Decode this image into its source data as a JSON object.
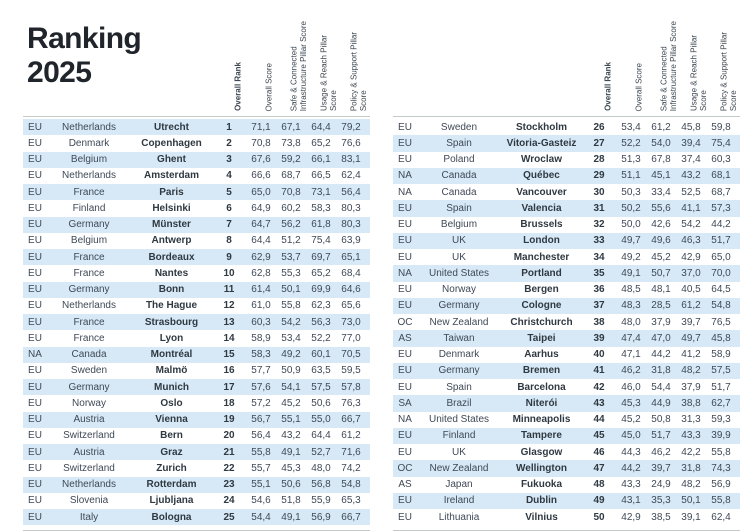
{
  "title": "Ranking\n2025",
  "column_headers": [
    "Overall Rank",
    "Overall Score",
    "Safe & Connected\nInfrastructure Pillar Score",
    "Usage & Reach Pillar\nScore",
    "Policy & Support Pillar\nScore"
  ],
  "colors": {
    "row_highlight": "#d7e9f6",
    "body_text": "#3f4956",
    "title_text": "#20242b",
    "rule_line": "#c4c9cc"
  },
  "tables": [
    {
      "rows": [
        {
          "region": "EU",
          "country": "Netherlands",
          "city": "Utrecht",
          "rank": "1",
          "overall": "71,1",
          "infrastructure": "67,1",
          "usage": "64,4",
          "policy": "79,2"
        },
        {
          "region": "EU",
          "country": "Denmark",
          "city": "Copenhagen",
          "rank": "2",
          "overall": "70,8",
          "infrastructure": "73,8",
          "usage": "65,2",
          "policy": "76,6"
        },
        {
          "region": "EU",
          "country": "Belgium",
          "city": "Ghent",
          "rank": "3",
          "overall": "67,6",
          "infrastructure": "59,2",
          "usage": "66,1",
          "policy": "83,1"
        },
        {
          "region": "EU",
          "country": "Netherlands",
          "city": "Amsterdam",
          "rank": "4",
          "overall": "66,6",
          "infrastructure": "68,7",
          "usage": "66,5",
          "policy": "62,4"
        },
        {
          "region": "EU",
          "country": "France",
          "city": "Paris",
          "rank": "5",
          "overall": "65,0",
          "infrastructure": "70,8",
          "usage": "73,1",
          "policy": "56,4"
        },
        {
          "region": "EU",
          "country": "Finland",
          "city": "Helsinki",
          "rank": "6",
          "overall": "64,9",
          "infrastructure": "60,2",
          "usage": "58,3",
          "policy": "80,3"
        },
        {
          "region": "EU",
          "country": "Germany",
          "city": "Münster",
          "rank": "7",
          "overall": "64,7",
          "infrastructure": "56,2",
          "usage": "61,8",
          "policy": "80,3"
        },
        {
          "region": "EU",
          "country": "Belgium",
          "city": "Antwerp",
          "rank": "8",
          "overall": "64,4",
          "infrastructure": "51,2",
          "usage": "75,4",
          "policy": "63,9"
        },
        {
          "region": "EU",
          "country": "France",
          "city": "Bordeaux",
          "rank": "9",
          "overall": "62,9",
          "infrastructure": "53,7",
          "usage": "69,7",
          "policy": "65,1"
        },
        {
          "region": "EU",
          "country": "France",
          "city": "Nantes",
          "rank": "10",
          "overall": "62,8",
          "infrastructure": "55,3",
          "usage": "65,2",
          "policy": "68,4"
        },
        {
          "region": "EU",
          "country": "Germany",
          "city": "Bonn",
          "rank": "11",
          "overall": "61,4",
          "infrastructure": "50,1",
          "usage": "69,9",
          "policy": "64,6"
        },
        {
          "region": "EU",
          "country": "Netherlands",
          "city": "The Hague",
          "rank": "12",
          "overall": "61,0",
          "infrastructure": "55,8",
          "usage": "62,3",
          "policy": "65,6"
        },
        {
          "region": "EU",
          "country": "France",
          "city": "Strasbourg",
          "rank": "13",
          "overall": "60,3",
          "infrastructure": "54,2",
          "usage": "56,3",
          "policy": "73,0"
        },
        {
          "region": "EU",
          "country": "France",
          "city": "Lyon",
          "rank": "14",
          "overall": "58,9",
          "infrastructure": "53,4",
          "usage": "52,2",
          "policy": "77,0"
        },
        {
          "region": "NA",
          "country": "Canada",
          "city": "Montréal",
          "rank": "15",
          "overall": "58,3",
          "infrastructure": "49,2",
          "usage": "60,1",
          "policy": "70,5"
        },
        {
          "region": "EU",
          "country": "Sweden",
          "city": "Malmö",
          "rank": "16",
          "overall": "57,7",
          "infrastructure": "50,9",
          "usage": "63,5",
          "policy": "59,5"
        },
        {
          "region": "EU",
          "country": "Germany",
          "city": "Munich",
          "rank": "17",
          "overall": "57,6",
          "infrastructure": "54,1",
          "usage": "57,5",
          "policy": "57,8"
        },
        {
          "region": "EU",
          "country": "Norway",
          "city": "Oslo",
          "rank": "18",
          "overall": "57,2",
          "infrastructure": "45,2",
          "usage": "50,6",
          "policy": "76,3"
        },
        {
          "region": "EU",
          "country": "Austria",
          "city": "Vienna",
          "rank": "19",
          "overall": "56,7",
          "infrastructure": "55,1",
          "usage": "55,0",
          "policy": "66,7"
        },
        {
          "region": "EU",
          "country": "Switzerland",
          "city": "Bern",
          "rank": "20",
          "overall": "56,4",
          "infrastructure": "43,2",
          "usage": "64,4",
          "policy": "61,2"
        },
        {
          "region": "EU",
          "country": "Austria",
          "city": "Graz",
          "rank": "21",
          "overall": "55,8",
          "infrastructure": "49,1",
          "usage": "52,7",
          "policy": "71,6"
        },
        {
          "region": "EU",
          "country": "Switzerland",
          "city": "Zurich",
          "rank": "22",
          "overall": "55,7",
          "infrastructure": "45,3",
          "usage": "48,0",
          "policy": "74,2"
        },
        {
          "region": "EU",
          "country": "Netherlands",
          "city": "Rotterdam",
          "rank": "23",
          "overall": "55,1",
          "infrastructure": "50,6",
          "usage": "56,8",
          "policy": "54,8"
        },
        {
          "region": "EU",
          "country": "Slovenia",
          "city": "Ljubljana",
          "rank": "24",
          "overall": "54,6",
          "infrastructure": "51,8",
          "usage": "55,9",
          "policy": "65,3"
        },
        {
          "region": "EU",
          "country": "Italy",
          "city": "Bologna",
          "rank": "25",
          "overall": "54,4",
          "infrastructure": "49,1",
          "usage": "56,9",
          "policy": "66,7"
        }
      ]
    },
    {
      "rows": [
        {
          "region": "EU",
          "country": "Sweden",
          "city": "Stockholm",
          "rank": "26",
          "overall": "53,4",
          "infrastructure": "61,2",
          "usage": "45,8",
          "policy": "59,8"
        },
        {
          "region": "EU",
          "country": "Spain",
          "city": "Vitoria-Gasteiz",
          "rank": "27",
          "overall": "52,2",
          "infrastructure": "54,0",
          "usage": "39,4",
          "policy": "75,4"
        },
        {
          "region": "EU",
          "country": "Poland",
          "city": "Wroclaw",
          "rank": "28",
          "overall": "51,3",
          "infrastructure": "67,8",
          "usage": "37,4",
          "policy": "60,3"
        },
        {
          "region": "NA",
          "country": "Canada",
          "city": "Québec",
          "rank": "29",
          "overall": "51,1",
          "infrastructure": "45,1",
          "usage": "43,2",
          "policy": "68,1"
        },
        {
          "region": "NA",
          "country": "Canada",
          "city": "Vancouver",
          "rank": "30",
          "overall": "50,3",
          "infrastructure": "33,4",
          "usage": "52,5",
          "policy": "68,7"
        },
        {
          "region": "EU",
          "country": "Spain",
          "city": "Valencia",
          "rank": "31",
          "overall": "50,2",
          "infrastructure": "55,6",
          "usage": "41,1",
          "policy": "57,3"
        },
        {
          "region": "EU",
          "country": "Belgium",
          "city": "Brussels",
          "rank": "32",
          "overall": "50,0",
          "infrastructure": "42,6",
          "usage": "54,2",
          "policy": "44,2"
        },
        {
          "region": "EU",
          "country": "UK",
          "city": "London",
          "rank": "33",
          "overall": "49,7",
          "infrastructure": "49,6",
          "usage": "46,3",
          "policy": "51,7"
        },
        {
          "region": "EU",
          "country": "UK",
          "city": "Manchester",
          "rank": "34",
          "overall": "49,2",
          "infrastructure": "45,2",
          "usage": "42,9",
          "policy": "65,0"
        },
        {
          "region": "NA",
          "country": "United States",
          "city": "Portland",
          "rank": "35",
          "overall": "49,1",
          "infrastructure": "50,7",
          "usage": "37,0",
          "policy": "70,0"
        },
        {
          "region": "EU",
          "country": "Norway",
          "city": "Bergen",
          "rank": "36",
          "overall": "48,5",
          "infrastructure": "48,1",
          "usage": "40,5",
          "policy": "64,5"
        },
        {
          "region": "EU",
          "country": "Germany",
          "city": "Cologne",
          "rank": "37",
          "overall": "48,3",
          "infrastructure": "28,5",
          "usage": "61,2",
          "policy": "54,8"
        },
        {
          "region": "OC",
          "country": "New Zealand",
          "city": "Christchurch",
          "rank": "38",
          "overall": "48,0",
          "infrastructure": "37,9",
          "usage": "39,7",
          "policy": "76,5"
        },
        {
          "region": "AS",
          "country": "Taiwan",
          "city": "Taipei",
          "rank": "39",
          "overall": "47,4",
          "infrastructure": "47,0",
          "usage": "49,7",
          "policy": "45,8"
        },
        {
          "region": "EU",
          "country": "Denmark",
          "city": "Aarhus",
          "rank": "40",
          "overall": "47,1",
          "infrastructure": "44,2",
          "usage": "41,2",
          "policy": "58,9"
        },
        {
          "region": "EU",
          "country": "Germany",
          "city": "Bremen",
          "rank": "41",
          "overall": "46,2",
          "infrastructure": "31,8",
          "usage": "48,2",
          "policy": "57,5"
        },
        {
          "region": "EU",
          "country": "Spain",
          "city": "Barcelona",
          "rank": "42",
          "overall": "46,0",
          "infrastructure": "54,4",
          "usage": "37,9",
          "policy": "51,7"
        },
        {
          "region": "SA",
          "country": "Brazil",
          "city": "Niterói",
          "rank": "43",
          "overall": "45,3",
          "infrastructure": "44,9",
          "usage": "38,8",
          "policy": "62,7"
        },
        {
          "region": "NA",
          "country": "United States",
          "city": "Minneapolis",
          "rank": "44",
          "overall": "45,2",
          "infrastructure": "50,8",
          "usage": "31,3",
          "policy": "59,3"
        },
        {
          "region": "EU",
          "country": "Finland",
          "city": "Tampere",
          "rank": "45",
          "overall": "45,0",
          "infrastructure": "51,7",
          "usage": "43,3",
          "policy": "39,9"
        },
        {
          "region": "EU",
          "country": "UK",
          "city": "Glasgow",
          "rank": "46",
          "overall": "44,3",
          "infrastructure": "46,2",
          "usage": "42,2",
          "policy": "55,8"
        },
        {
          "region": "OC",
          "country": "New Zealand",
          "city": "Wellington",
          "rank": "47",
          "overall": "44,2",
          "infrastructure": "39,7",
          "usage": "31,8",
          "policy": "74,3"
        },
        {
          "region": "AS",
          "country": "Japan",
          "city": "Fukuoka",
          "rank": "48",
          "overall": "43,3",
          "infrastructure": "24,9",
          "usage": "48,2",
          "policy": "56,9"
        },
        {
          "region": "EU",
          "country": "Ireland",
          "city": "Dublin",
          "rank": "49",
          "overall": "43,1",
          "infrastructure": "35,3",
          "usage": "50,1",
          "policy": "55,8"
        },
        {
          "region": "EU",
          "country": "Lithuania",
          "city": "Vilnius",
          "rank": "50",
          "overall": "42,9",
          "infrastructure": "38,5",
          "usage": "39,1",
          "policy": "62,4"
        }
      ]
    }
  ]
}
